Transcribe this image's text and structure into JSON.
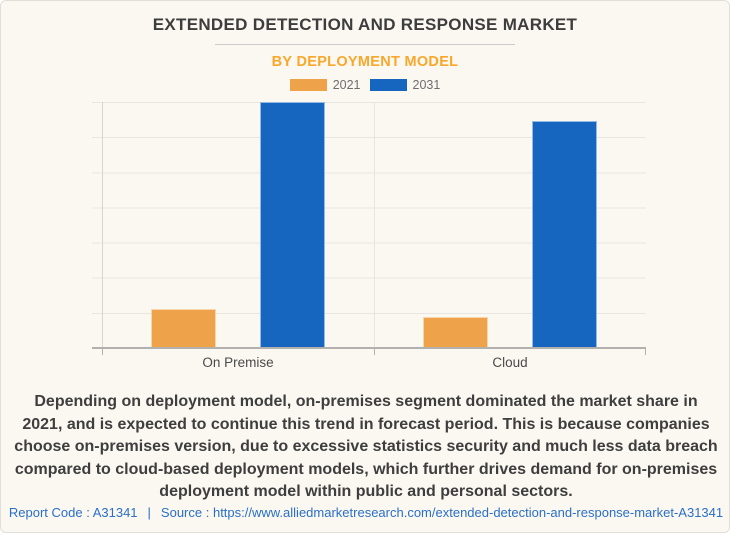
{
  "header": {
    "title": "EXTENDED DETECTION AND RESPONSE MARKET",
    "subtitle": "BY DEPLOYMENT MODEL"
  },
  "colors": {
    "series_2021": "#eea34b",
    "series_2031": "#1666c0",
    "subtitle_orange": "#f9a72b",
    "footer_blue": "#2a6fc9",
    "background": "#faf8f1"
  },
  "chart_data": {
    "type": "bar",
    "categories": [
      "On Premise",
      "Cloud"
    ],
    "series": [
      {
        "name": "2021",
        "color": "#eea34b",
        "values": [
          15.9,
          12.6
        ]
      },
      {
        "name": "2031",
        "color": "#1666c0",
        "values": [
          100,
          92.3
        ]
      }
    ],
    "title": "EXTENDED DETECTION AND RESPONSE MARKET",
    "subtitle": "BY DEPLOYMENT MODEL",
    "xlabel": "",
    "ylabel": "",
    "ylim": [
      0,
      100
    ],
    "grid": true,
    "legend_position": "top",
    "value_units": "relative height, % of tallest bar (y-axis shows no tick labels)"
  },
  "description": "Depending on deployment model, on-premises segment dominated the market share in 2021, and is expected to continue this trend in forecast period. This is because companies choose on-premises version, due to excessive statistics security and much less data breach compared to cloud-based deployment models, which further drives demand for on-premises deployment model within public and personal sectors.",
  "footer": {
    "report_code": "Report Code : A31341",
    "separator": "|",
    "source_label": "Source :",
    "source_url": "https://www.alliedmarketresearch.com/extended-detection-and-response-market-A31341"
  }
}
